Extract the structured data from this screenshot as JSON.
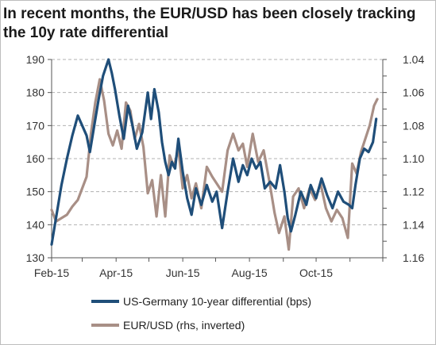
{
  "title": "In recent months, the EUR/USD has been closely tracking the 10y rate differential",
  "chart_data": {
    "type": "line",
    "title": "In recent months, the EUR/USD has been closely tracking the 10y rate differential",
    "x_tick_labels": [
      "Feb-15",
      "Apr-15",
      "Jun-15",
      "Aug-15",
      "Oct-15"
    ],
    "x_range": [
      "2015-02-01",
      "2015-12-01"
    ],
    "y_left": {
      "ticks": [
        130,
        140,
        150,
        160,
        170,
        180,
        190
      ],
      "range": [
        130,
        190
      ]
    },
    "y_right": {
      "ticks": [
        1.04,
        1.06,
        1.08,
        1.1,
        1.12,
        1.14,
        1.16
      ],
      "range": [
        1.04,
        1.16
      ],
      "inverted": true,
      "extended_to": 1.175
    },
    "grid": "horizontal dashed",
    "legend_position": "bottom",
    "colors": {
      "series1": "#1f4e79",
      "series2": "#a88f86",
      "grid": "#b0b0b0",
      "axis": "#555555"
    },
    "series": [
      {
        "name": "US-Germany 10-year differential (bps)",
        "axis": "left",
        "dates": [
          "2015-02-01",
          "2015-02-05",
          "2015-02-10",
          "2015-02-15",
          "2015-02-20",
          "2015-02-25",
          "2015-03-01",
          "2015-03-05",
          "2015-03-08",
          "2015-03-12",
          "2015-03-16",
          "2015-03-20",
          "2015-03-25",
          "2015-03-28",
          "2015-03-31",
          "2015-04-04",
          "2015-04-08",
          "2015-04-12",
          "2015-04-16",
          "2015-04-20",
          "2015-04-25",
          "2015-04-30",
          "2015-05-03",
          "2015-05-06",
          "2015-05-10",
          "2015-05-13",
          "2015-05-16",
          "2015-05-19",
          "2015-05-22",
          "2015-05-25",
          "2015-05-28",
          "2015-06-01",
          "2015-06-05",
          "2015-06-09",
          "2015-06-13",
          "2015-06-18",
          "2015-06-23",
          "2015-06-28",
          "2015-07-02",
          "2015-07-07",
          "2015-07-12",
          "2015-07-17",
          "2015-07-22",
          "2015-07-26",
          "2015-07-30",
          "2015-08-03",
          "2015-08-07",
          "2015-08-11",
          "2015-08-15",
          "2015-08-20",
          "2015-08-25",
          "2015-08-29",
          "2015-09-02",
          "2015-09-05",
          "2015-09-08",
          "2015-09-12",
          "2015-09-17",
          "2015-09-22",
          "2015-09-26",
          "2015-10-01",
          "2015-10-06",
          "2015-10-11",
          "2015-10-16",
          "2015-10-21",
          "2015-10-26",
          "2015-10-31",
          "2015-11-03",
          "2015-11-06",
          "2015-11-10",
          "2015-11-14",
          "2015-11-18",
          "2015-11-22",
          "2015-11-25"
        ],
        "values": [
          134,
          142,
          152,
          160,
          167,
          173,
          170,
          167,
          162,
          170,
          178,
          185,
          190,
          186,
          181,
          173,
          166,
          176,
          170,
          163,
          168,
          180,
          172,
          181,
          174,
          165,
          159,
          155,
          159,
          157,
          166,
          156,
          148,
          143,
          151,
          146,
          152,
          147,
          150,
          139,
          150,
          160,
          153,
          158,
          155,
          160,
          157,
          159,
          151,
          153,
          151,
          158,
          150,
          142,
          138,
          143,
          150,
          146,
          152,
          148,
          154,
          149,
          145,
          150,
          147,
          146,
          145,
          152,
          160,
          163,
          162,
          165,
          172
        ]
      },
      {
        "name": "EUR/USD (rhs, inverted)",
        "axis": "right",
        "dates": [
          "2015-02-01",
          "2015-02-05",
          "2015-02-10",
          "2015-02-15",
          "2015-02-20",
          "2015-02-25",
          "2015-03-01",
          "2015-03-05",
          "2015-03-09",
          "2015-03-13",
          "2015-03-17",
          "2015-03-21",
          "2015-03-25",
          "2015-03-29",
          "2015-04-02",
          "2015-04-06",
          "2015-04-10",
          "2015-04-14",
          "2015-04-18",
          "2015-04-22",
          "2015-04-26",
          "2015-04-30",
          "2015-05-04",
          "2015-05-08",
          "2015-05-12",
          "2015-05-16",
          "2015-05-20",
          "2015-05-24",
          "2015-05-28",
          "2015-06-01",
          "2015-06-05",
          "2015-06-09",
          "2015-06-13",
          "2015-06-18",
          "2015-06-23",
          "2015-06-28",
          "2015-07-02",
          "2015-07-07",
          "2015-07-12",
          "2015-07-17",
          "2015-07-22",
          "2015-07-26",
          "2015-07-30",
          "2015-08-04",
          "2015-08-09",
          "2015-08-14",
          "2015-08-19",
          "2015-08-24",
          "2015-08-28",
          "2015-09-02",
          "2015-09-06",
          "2015-09-10",
          "2015-09-15",
          "2015-09-20",
          "2015-09-25",
          "2015-09-30",
          "2015-10-05",
          "2015-10-10",
          "2015-10-15",
          "2015-10-20",
          "2015-10-25",
          "2015-10-30",
          "2015-11-03",
          "2015-11-07",
          "2015-11-11",
          "2015-11-15",
          "2015-11-19",
          "2015-11-23",
          "2015-11-26"
        ],
        "values": [
          1.131,
          1.138,
          1.136,
          1.134,
          1.129,
          1.125,
          1.118,
          1.111,
          1.085,
          1.066,
          1.052,
          1.065,
          1.085,
          1.092,
          1.083,
          1.094,
          1.066,
          1.071,
          1.088,
          1.079,
          1.093,
          1.121,
          1.113,
          1.135,
          1.11,
          1.135,
          1.098,
          1.105,
          1.094,
          1.118,
          1.11,
          1.124,
          1.115,
          1.13,
          1.105,
          1.111,
          1.115,
          1.12,
          1.095,
          1.085,
          1.095,
          1.091,
          1.105,
          1.085,
          1.102,
          1.095,
          1.113,
          1.133,
          1.145,
          1.135,
          1.155,
          1.123,
          1.118,
          1.13,
          1.118,
          1.125,
          1.115,
          1.13,
          1.138,
          1.131,
          1.136,
          1.148,
          1.103,
          1.109,
          1.096,
          1.088,
          1.08,
          1.068,
          1.064
        ]
      }
    ]
  },
  "legend": [
    {
      "label": "US-Germany 10-year differential (bps)",
      "color": "#1f4e79"
    },
    {
      "label": "EUR/USD  (rhs, inverted)",
      "color": "#a88f86"
    }
  ]
}
